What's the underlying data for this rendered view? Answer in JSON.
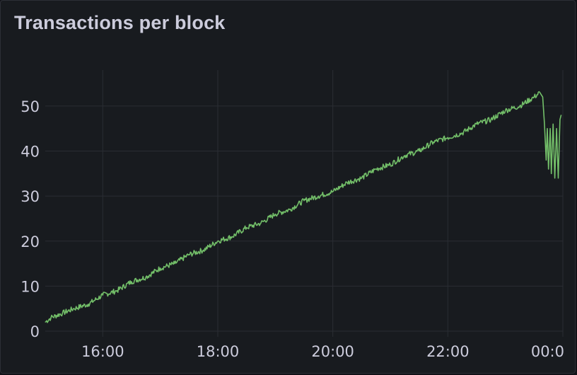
{
  "panel": {
    "title": "Transactions per block"
  },
  "chart_data": {
    "type": "line",
    "title": "Transactions per block",
    "xlabel": "",
    "ylabel": "",
    "x_unit": "hours",
    "xlim": [
      15.0,
      24.0
    ],
    "ylim": [
      0,
      58
    ],
    "y_ticks": [
      0,
      10,
      20,
      30,
      40,
      50
    ],
    "x_ticks": [
      {
        "value": 16,
        "label": "16:00"
      },
      {
        "value": 18,
        "label": "18:00"
      },
      {
        "value": 20,
        "label": "20:00"
      },
      {
        "value": 22,
        "label": "22:00"
      },
      {
        "value": 24,
        "label": "00:0"
      }
    ],
    "grid": true,
    "line_color": "#73bf69",
    "series": [
      {
        "values": [
          [
            15.0,
            2
          ],
          [
            15.1,
            3
          ],
          [
            15.3,
            4
          ],
          [
            15.5,
            5
          ],
          [
            15.75,
            6
          ],
          [
            16.0,
            8
          ],
          [
            16.25,
            9
          ],
          [
            16.5,
            11
          ],
          [
            16.75,
            12
          ],
          [
            17.0,
            14
          ],
          [
            17.25,
            15
          ],
          [
            17.5,
            17
          ],
          [
            17.75,
            18
          ],
          [
            18.0,
            20
          ],
          [
            18.25,
            21
          ],
          [
            18.5,
            23
          ],
          [
            18.75,
            24
          ],
          [
            19.0,
            26
          ],
          [
            19.25,
            27
          ],
          [
            19.5,
            29
          ],
          [
            19.75,
            30
          ],
          [
            20.0,
            31
          ],
          [
            20.25,
            33
          ],
          [
            20.5,
            34
          ],
          [
            20.75,
            36
          ],
          [
            21.0,
            37
          ],
          [
            21.25,
            39
          ],
          [
            21.5,
            40
          ],
          [
            21.75,
            42
          ],
          [
            22.0,
            43
          ],
          [
            22.25,
            44
          ],
          [
            22.5,
            46
          ],
          [
            22.75,
            47
          ],
          [
            23.0,
            49
          ],
          [
            23.25,
            50
          ],
          [
            23.5,
            52
          ],
          [
            23.6,
            53
          ],
          [
            23.65,
            52
          ],
          [
            23.68,
            46
          ],
          [
            23.71,
            38
          ],
          [
            23.73,
            45
          ],
          [
            23.75,
            36
          ],
          [
            23.78,
            45
          ],
          [
            23.8,
            35
          ],
          [
            23.83,
            46
          ],
          [
            23.86,
            34
          ],
          [
            23.89,
            45
          ],
          [
            23.92,
            34
          ],
          [
            23.95,
            47
          ],
          [
            23.97,
            48
          ]
        ]
      }
    ]
  }
}
